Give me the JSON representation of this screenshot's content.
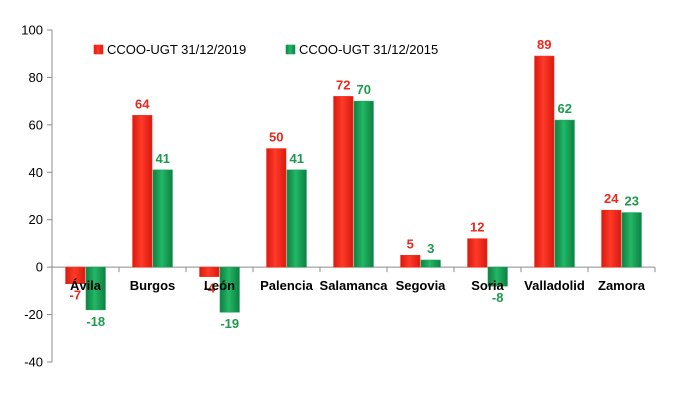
{
  "chart_data": {
    "type": "bar",
    "title": "",
    "xlabel": "",
    "ylabel": "",
    "ylim": [
      -40,
      100
    ],
    "yticks": [
      -40,
      -20,
      0,
      20,
      40,
      60,
      80,
      100
    ],
    "grid": false,
    "legend_position": "top-left",
    "categories": [
      "Ávila",
      "Burgos",
      "León",
      "Palencia",
      "Salamanca",
      "Segovia",
      "Soria",
      "Valladolid",
      "Zamora"
    ],
    "series": [
      {
        "name": "CCOO-UGT 31/12/2019",
        "color": "#ff2a1a",
        "label_color": "#e8291c",
        "values": [
          -7,
          64,
          -4,
          50,
          72,
          5,
          12,
          89,
          24
        ]
      },
      {
        "name": "CCOO-UGT 31/12/2015",
        "color": "#1aa05a",
        "label_color": "#1d9a4e",
        "values": [
          -18,
          41,
          -19,
          41,
          70,
          3,
          -8,
          62,
          23
        ]
      }
    ]
  }
}
